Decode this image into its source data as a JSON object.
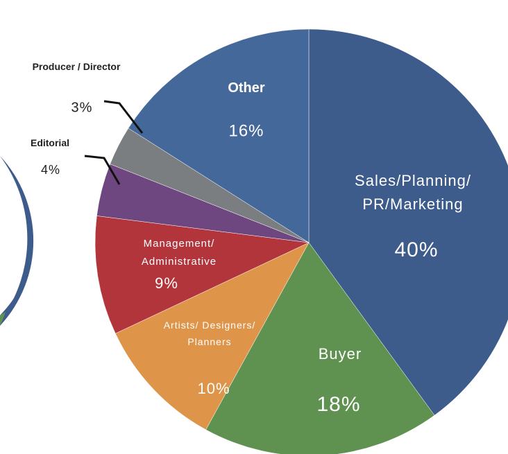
{
  "chart_data": {
    "type": "pie",
    "categories": [
      "Sales/Planning/\nPR/Marketing",
      "Buyer",
      "Artists/ Designers/\nPlanners",
      "Management/\nAdministrative",
      "Editorial",
      "Producer / Director",
      "Other"
    ],
    "values": [
      40,
      18,
      10,
      9,
      4,
      3,
      16
    ],
    "value_labels": [
      "40%",
      "18%",
      "10%",
      "9%",
      "4%",
      "3%",
      "16%"
    ],
    "colors": [
      "#3d5b8b",
      "#5f9150",
      "#de9549",
      "#b3353c",
      "#6e4680",
      "#7b7e81",
      "#45689b"
    ]
  }
}
